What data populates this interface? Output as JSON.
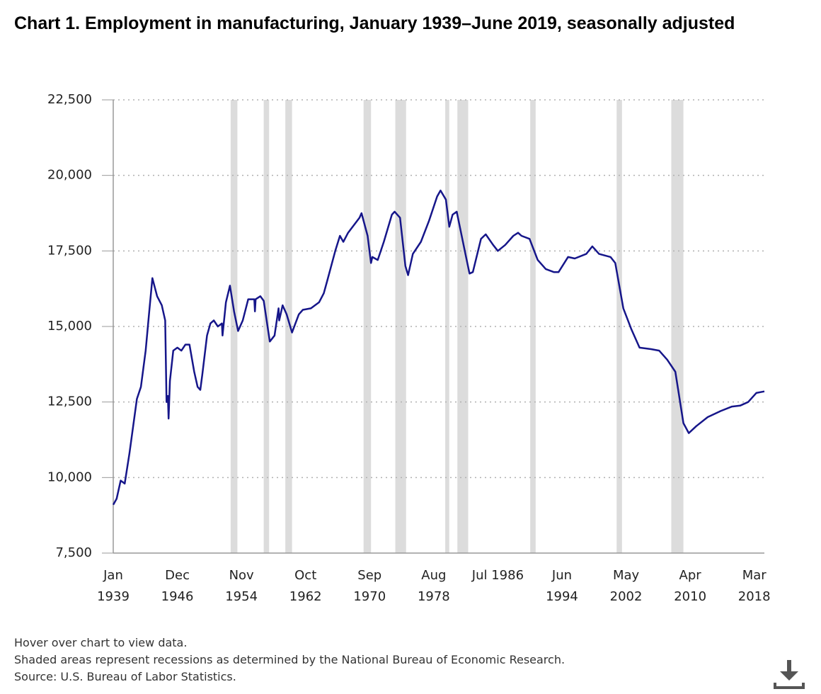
{
  "chart_data": {
    "type": "line",
    "title": "Chart 1. Employment in manufacturing, January 1939–June 2019, seasonally adjusted",
    "notes": [
      "Hover over chart to view data.",
      "Shaded areas represent recessions as determined by the National Bureau of Economic Research.",
      "Source: U.S. Bureau of Labor Statistics."
    ],
    "ylim": [
      7500,
      22500
    ],
    "yticks": [
      {
        "value": 7500,
        "label": "7,500"
      },
      {
        "value": 10000,
        "label": "10,000"
      },
      {
        "value": 12500,
        "label": "12,500"
      },
      {
        "value": 15000,
        "label": "15,000"
      },
      {
        "value": 17500,
        "label": "17,500"
      },
      {
        "value": 20000,
        "label": "20,000"
      },
      {
        "value": 22500,
        "label": "22,500"
      }
    ],
    "xlim": [
      "1939-01",
      "2019-06"
    ],
    "xticks": [
      {
        "value": "1939-01",
        "label": [
          "Jan",
          "1939"
        ]
      },
      {
        "value": "1946-12",
        "label": [
          "Dec",
          "1946"
        ]
      },
      {
        "value": "1954-11",
        "label": [
          "Nov",
          "1954"
        ]
      },
      {
        "value": "1962-10",
        "label": [
          "Oct",
          "1962"
        ]
      },
      {
        "value": "1970-09",
        "label": [
          "Sep",
          "1970"
        ]
      },
      {
        "value": "1978-08",
        "label": [
          "Aug",
          "1978"
        ]
      },
      {
        "value": "1986-07",
        "label": [
          "Jul 1986"
        ]
      },
      {
        "value": "1994-06",
        "label": [
          "Jun",
          "1994"
        ]
      },
      {
        "value": "2002-05",
        "label": [
          "May",
          "2002"
        ]
      },
      {
        "value": "2010-04",
        "label": [
          "Apr",
          "2010"
        ]
      },
      {
        "value": "2018-03",
        "label": [
          "Mar",
          "2018"
        ]
      }
    ],
    "grid": true,
    "recession_color": "#dcdcdc",
    "recessions": [
      [
        "1953-07",
        "1954-05"
      ],
      [
        "1957-08",
        "1958-04"
      ],
      [
        "1960-04",
        "1961-02"
      ],
      [
        "1969-12",
        "1970-11"
      ],
      [
        "1973-11",
        "1975-03"
      ],
      [
        "1980-01",
        "1980-07"
      ],
      [
        "1981-07",
        "1982-11"
      ],
      [
        "1990-07",
        "1991-03"
      ],
      [
        "2001-03",
        "2001-11"
      ],
      [
        "2007-12",
        "2009-06"
      ]
    ],
    "x": [
      "1939-01",
      "1939-06",
      "1939-12",
      "1940-06",
      "1941-01",
      "1941-12",
      "1942-06",
      "1943-01",
      "1943-06",
      "1943-11",
      "1944-06",
      "1945-01",
      "1945-06",
      "1945-08",
      "1945-10",
      "1945-11",
      "1946-01",
      "1946-06",
      "1946-12",
      "1947-06",
      "1947-12",
      "1948-06",
      "1949-01",
      "1949-06",
      "1949-10",
      "1950-01",
      "1950-08",
      "1951-01",
      "1951-06",
      "1951-12",
      "1952-06",
      "1952-07",
      "1952-12",
      "1953-06",
      "1953-12",
      "1954-06",
      "1955-01",
      "1955-09",
      "1956-06",
      "1956-07",
      "1956-08",
      "1957-03",
      "1957-08",
      "1958-05",
      "1958-12",
      "1959-06",
      "1959-07",
      "1959-12",
      "1960-06",
      "1961-02",
      "1961-12",
      "1962-06",
      "1963-06",
      "1964-06",
      "1965-01",
      "1965-06",
      "1966-06",
      "1967-01",
      "1967-06",
      "1968-01",
      "1969-06",
      "1969-09",
      "1970-06",
      "1970-11",
      "1971-01",
      "1971-09",
      "1972-06",
      "1973-06",
      "1973-10",
      "1974-06",
      "1975-02",
      "1975-06",
      "1976-01",
      "1977-01",
      "1978-01",
      "1979-01",
      "1979-06",
      "1980-02",
      "1980-07",
      "1980-12",
      "1981-06",
      "1982-06",
      "1983-01",
      "1983-06",
      "1984-06",
      "1985-01",
      "1985-12",
      "1986-07",
      "1987-06",
      "1988-06",
      "1989-01",
      "1989-06",
      "1990-06",
      "1991-06",
      "1992-06",
      "1993-06",
      "1994-01",
      "1995-03",
      "1996-01",
      "1997-06",
      "1998-03",
      "1999-01",
      "2000-06",
      "2001-01",
      "2002-01",
      "2003-01",
      "2004-01",
      "2005-06",
      "2006-06",
      "2007-06",
      "2008-06",
      "2009-06",
      "2010-02",
      "2011-01",
      "2012-06",
      "2014-01",
      "2015-06",
      "2016-06",
      "2017-06",
      "2018-06",
      "2019-06"
    ],
    "series": [
      {
        "name": "Employment in manufacturing",
        "color": "#16168a",
        "values": [
          9100,
          9300,
          9900,
          9800,
          10800,
          12600,
          13000,
          14200,
          15400,
          16600,
          16000,
          15700,
          15200,
          12500,
          12700,
          11950,
          13200,
          14200,
          14300,
          14200,
          14400,
          14400,
          13500,
          13000,
          12900,
          13400,
          14700,
          15100,
          15200,
          15000,
          15100,
          14700,
          15800,
          16350,
          15500,
          14850,
          15200,
          15900,
          15900,
          15500,
          15900,
          16000,
          15850,
          14500,
          14700,
          15600,
          15200,
          15700,
          15400,
          14800,
          15400,
          15550,
          15600,
          15800,
          16100,
          16500,
          17500,
          18000,
          17800,
          18100,
          18600,
          18750,
          18000,
          17100,
          17300,
          17200,
          17800,
          18700,
          18800,
          18600,
          17000,
          16700,
          17400,
          17800,
          18500,
          19300,
          19500,
          19200,
          18300,
          18700,
          18800,
          17500,
          16750,
          16800,
          17900,
          18050,
          17700,
          17500,
          17700,
          18000,
          18100,
          18000,
          17900,
          17200,
          16900,
          16800,
          16800,
          17300,
          17250,
          17400,
          17650,
          17400,
          17300,
          17100,
          15600,
          14900,
          14300,
          14250,
          14200,
          13900,
          13500,
          11800,
          11470,
          11700,
          12000,
          12200,
          12350,
          12380,
          12500,
          12800,
          12850
        ]
      }
    ]
  }
}
